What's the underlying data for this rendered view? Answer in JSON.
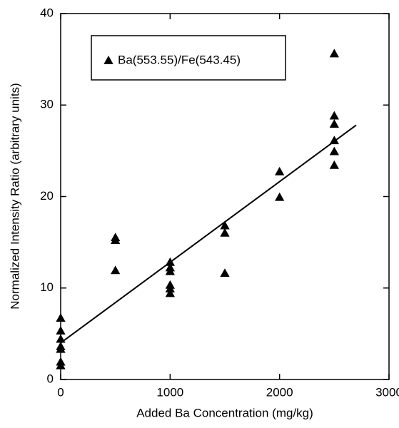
{
  "chart_data": {
    "type": "scatter",
    "xlabel": "Added Ba Concentration (mg/kg)",
    "ylabel": "Normalized Intensity Ratio (arbitrary units)",
    "xlim": [
      0,
      3000
    ],
    "xticks": [
      0,
      1000,
      2000,
      3000
    ],
    "ylim": [
      0,
      40
    ],
    "yticks": [
      0,
      10,
      20,
      30,
      40
    ],
    "grid": false,
    "legend": "upper left",
    "series": [
      {
        "name": "Ba(553.55)/Fe(543.45)",
        "color": "#000000",
        "x": [
          0,
          0,
          0,
          0,
          0,
          0,
          0,
          500,
          500,
          500,
          1000,
          1000,
          1000,
          1000,
          1000,
          1000,
          1500,
          1500,
          1500,
          2000,
          2000,
          2500,
          2500,
          2500,
          2500,
          2500,
          2500
        ],
        "values": [
          6.7,
          5.3,
          4.4,
          3.6,
          3.3,
          1.9,
          1.5,
          15.5,
          15.2,
          11.9,
          12.8,
          12.2,
          11.8,
          10.3,
          9.9,
          9.4,
          16.8,
          16.0,
          11.6,
          22.7,
          19.9,
          35.6,
          28.8,
          27.9,
          26.1,
          24.9,
          23.4
        ]
      }
    ],
    "fit": {
      "color": "#000000",
      "x": [
        0,
        2700
      ],
      "values": [
        4.0,
        27.8
      ]
    }
  }
}
